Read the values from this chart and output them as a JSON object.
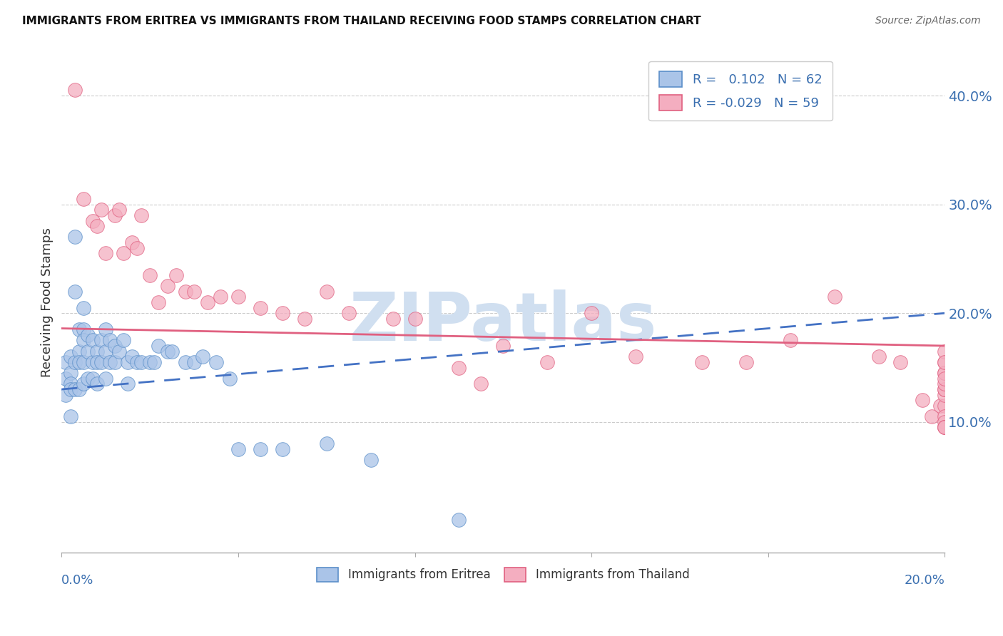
{
  "title": "IMMIGRANTS FROM ERITREA VS IMMIGRANTS FROM THAILAND RECEIVING FOOD STAMPS CORRELATION CHART",
  "source": "Source: ZipAtlas.com",
  "ylabel": "Receiving Food Stamps",
  "ytick_labels": [
    "10.0%",
    "20.0%",
    "30.0%",
    "40.0%"
  ],
  "ytick_values": [
    0.1,
    0.2,
    0.3,
    0.4
  ],
  "xlim": [
    0.0,
    0.2
  ],
  "ylim": [
    -0.02,
    0.44
  ],
  "color_eritrea": "#aac4e8",
  "color_thailand": "#f4aec0",
  "edge_eritrea": "#5b8fc9",
  "edge_thailand": "#e06080",
  "line_eritrea": "#4472c4",
  "line_thailand": "#e06080",
  "watermark_color": "#d0dff0",
  "eritrea_trend": [
    0.13,
    0.2
  ],
  "thailand_trend": [
    0.186,
    0.17
  ],
  "eritrea_x": [
    0.001,
    0.001,
    0.001,
    0.002,
    0.002,
    0.002,
    0.002,
    0.002,
    0.003,
    0.003,
    0.003,
    0.003,
    0.004,
    0.004,
    0.004,
    0.004,
    0.005,
    0.005,
    0.005,
    0.005,
    0.005,
    0.006,
    0.006,
    0.006,
    0.007,
    0.007,
    0.007,
    0.008,
    0.008,
    0.008,
    0.009,
    0.009,
    0.01,
    0.01,
    0.01,
    0.011,
    0.011,
    0.012,
    0.012,
    0.013,
    0.014,
    0.015,
    0.015,
    0.016,
    0.017,
    0.018,
    0.02,
    0.021,
    0.022,
    0.024,
    0.025,
    0.028,
    0.03,
    0.032,
    0.035,
    0.038,
    0.04,
    0.045,
    0.05,
    0.06,
    0.07,
    0.09
  ],
  "eritrea_y": [
    0.155,
    0.14,
    0.125,
    0.16,
    0.145,
    0.135,
    0.13,
    0.105,
    0.27,
    0.22,
    0.155,
    0.13,
    0.185,
    0.165,
    0.155,
    0.13,
    0.205,
    0.185,
    0.175,
    0.155,
    0.135,
    0.18,
    0.165,
    0.14,
    0.175,
    0.155,
    0.14,
    0.165,
    0.155,
    0.135,
    0.175,
    0.155,
    0.185,
    0.165,
    0.14,
    0.175,
    0.155,
    0.17,
    0.155,
    0.165,
    0.175,
    0.155,
    0.135,
    0.16,
    0.155,
    0.155,
    0.155,
    0.155,
    0.17,
    0.165,
    0.165,
    0.155,
    0.155,
    0.16,
    0.155,
    0.14,
    0.075,
    0.075,
    0.075,
    0.08,
    0.065,
    0.01
  ],
  "thailand_x": [
    0.003,
    0.005,
    0.007,
    0.008,
    0.009,
    0.01,
    0.012,
    0.013,
    0.014,
    0.016,
    0.017,
    0.018,
    0.02,
    0.022,
    0.024,
    0.026,
    0.028,
    0.03,
    0.033,
    0.036,
    0.04,
    0.045,
    0.05,
    0.055,
    0.06,
    0.065,
    0.075,
    0.08,
    0.09,
    0.095,
    0.1,
    0.11,
    0.12,
    0.13,
    0.145,
    0.155,
    0.165,
    0.175,
    0.185,
    0.19,
    0.195,
    0.197,
    0.199,
    0.2,
    0.2,
    0.2,
    0.2,
    0.2,
    0.2,
    0.2,
    0.2,
    0.2,
    0.2,
    0.2,
    0.2,
    0.2,
    0.2,
    0.2,
    0.2
  ],
  "thailand_y": [
    0.405,
    0.305,
    0.285,
    0.28,
    0.295,
    0.255,
    0.29,
    0.295,
    0.255,
    0.265,
    0.26,
    0.29,
    0.235,
    0.21,
    0.225,
    0.235,
    0.22,
    0.22,
    0.21,
    0.215,
    0.215,
    0.205,
    0.2,
    0.195,
    0.22,
    0.2,
    0.195,
    0.195,
    0.15,
    0.135,
    0.17,
    0.155,
    0.2,
    0.16,
    0.155,
    0.155,
    0.175,
    0.215,
    0.16,
    0.155,
    0.12,
    0.105,
    0.115,
    0.115,
    0.125,
    0.13,
    0.105,
    0.1,
    0.095,
    0.095,
    0.13,
    0.135,
    0.145,
    0.155,
    0.165,
    0.145,
    0.14,
    0.155,
    0.095
  ]
}
